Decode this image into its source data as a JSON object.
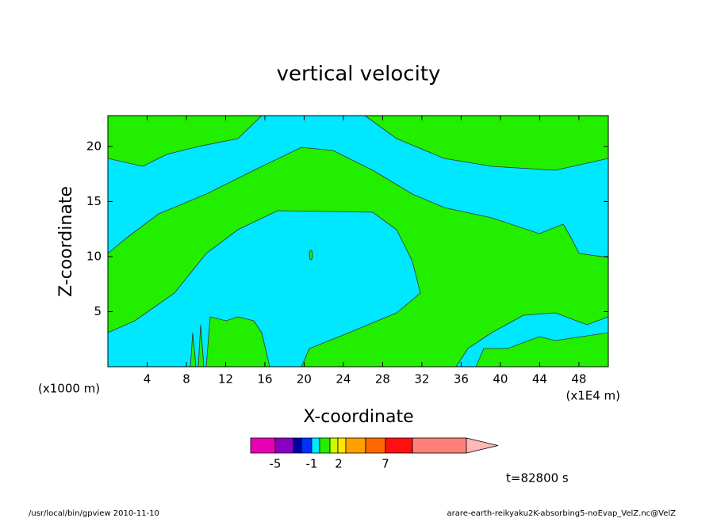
{
  "chart_data": {
    "type": "contour",
    "title": "vertical velocity",
    "xlabel": "X-coordinate",
    "ylabel": "Z-coordinate",
    "x_unit": "(x1E4 m)",
    "y_unit": "(x1000 m)",
    "xlim": [
      0,
      51
    ],
    "ylim": [
      0,
      22.8
    ],
    "xticks": [
      4,
      8,
      12,
      16,
      20,
      24,
      28,
      32,
      36,
      40,
      44,
      48
    ],
    "yticks": [
      5,
      10,
      15,
      20
    ],
    "colorbar": {
      "colors": [
        "#e800b4",
        "#8800c0",
        "#0000a8",
        "#0030ff",
        "#00e8ff",
        "#22ee00",
        "#c8ff00",
        "#ffe800",
        "#ffa000",
        "#ff6600",
        "#ff1010",
        "#ff8078",
        "#ffb8b8"
      ],
      "ticks": [
        -5,
        -1,
        2,
        7
      ]
    },
    "time_label": "t=82800 s",
    "footer_left": "/usr/local/bin/gpview  2010-11-10",
    "footer_right": "arare-earth-reikyaku2K-absorbing5-noEvap_VelZ.nc@VelZ"
  }
}
